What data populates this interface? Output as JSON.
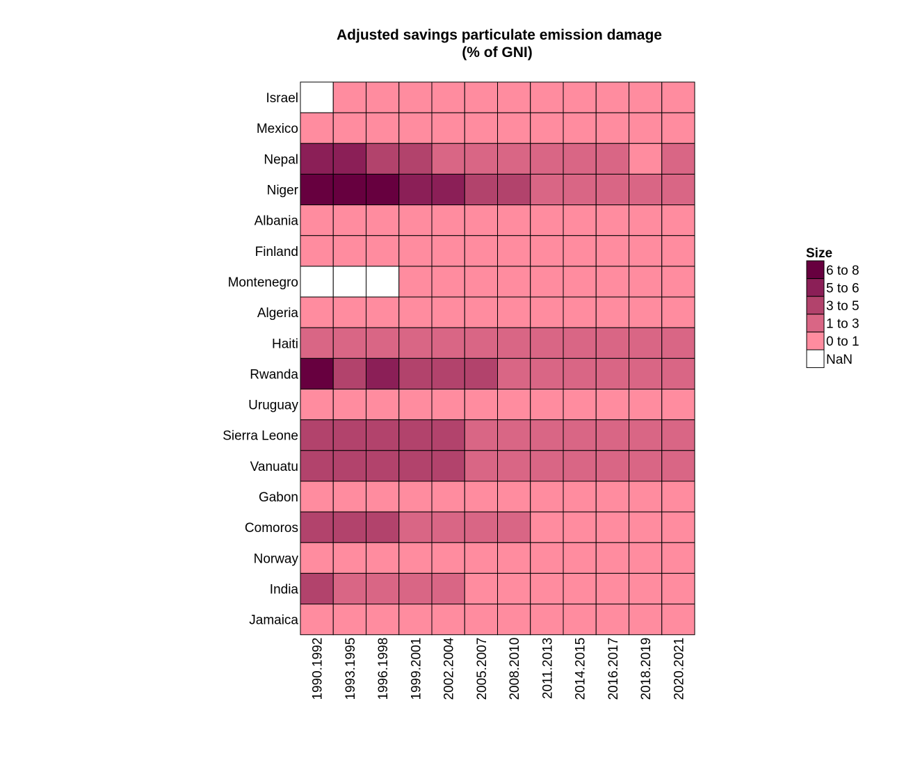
{
  "chart_data": {
    "type": "heatmap",
    "title": "Adjusted savings particulate emission damage",
    "subtitle": "(% of GNI)",
    "x": [
      "1990.1992",
      "1993.1995",
      "1996.1998",
      "1999.2001",
      "2002.2004",
      "2005.2007",
      "2008.2010",
      "2011.2013",
      "2014.2015",
      "2016.2017",
      "2018.2019",
      "2020.2021"
    ],
    "y": [
      "Israel",
      "Mexico",
      "Nepal",
      "Niger",
      "Albania",
      "Finland",
      "Montenegro",
      "Algeria",
      "Haiti",
      "Rwanda",
      "Uruguay",
      "Sierra Leone",
      "Vanuatu",
      "Gabon",
      "Comoros",
      "Norway",
      "India",
      "Jamaica"
    ],
    "values": [
      [
        "NaN",
        "0 to 1",
        "0 to 1",
        "0 to 1",
        "0 to 1",
        "0 to 1",
        "0 to 1",
        "0 to 1",
        "0 to 1",
        "0 to 1",
        "0 to 1",
        "0 to 1"
      ],
      [
        "0 to 1",
        "0 to 1",
        "0 to 1",
        "0 to 1",
        "0 to 1",
        "0 to 1",
        "0 to 1",
        "0 to 1",
        "0 to 1",
        "0 to 1",
        "0 to 1",
        "0 to 1"
      ],
      [
        "5 to 6",
        "5 to 6",
        "3 to 5",
        "3 to 5",
        "1 to 3",
        "1 to 3",
        "1 to 3",
        "1 to 3",
        "1 to 3",
        "1 to 3",
        "0 to 1",
        "1 to 3"
      ],
      [
        "6 to 8",
        "6 to 8",
        "6 to 8",
        "5 to 6",
        "5 to 6",
        "3 to 5",
        "3 to 5",
        "1 to 3",
        "1 to 3",
        "1 to 3",
        "1 to 3",
        "1 to 3"
      ],
      [
        "0 to 1",
        "0 to 1",
        "0 to 1",
        "0 to 1",
        "0 to 1",
        "0 to 1",
        "0 to 1",
        "0 to 1",
        "0 to 1",
        "0 to 1",
        "0 to 1",
        "0 to 1"
      ],
      [
        "0 to 1",
        "0 to 1",
        "0 to 1",
        "0 to 1",
        "0 to 1",
        "0 to 1",
        "0 to 1",
        "0 to 1",
        "0 to 1",
        "0 to 1",
        "0 to 1",
        "0 to 1"
      ],
      [
        "NaN",
        "NaN",
        "NaN",
        "0 to 1",
        "0 to 1",
        "0 to 1",
        "0 to 1",
        "0 to 1",
        "0 to 1",
        "0 to 1",
        "0 to 1",
        "0 to 1"
      ],
      [
        "0 to 1",
        "0 to 1",
        "0 to 1",
        "0 to 1",
        "0 to 1",
        "0 to 1",
        "0 to 1",
        "0 to 1",
        "0 to 1",
        "0 to 1",
        "0 to 1",
        "0 to 1"
      ],
      [
        "1 to 3",
        "1 to 3",
        "1 to 3",
        "1 to 3",
        "1 to 3",
        "1 to 3",
        "1 to 3",
        "1 to 3",
        "1 to 3",
        "1 to 3",
        "1 to 3",
        "1 to 3"
      ],
      [
        "6 to 8",
        "3 to 5",
        "5 to 6",
        "3 to 5",
        "3 to 5",
        "3 to 5",
        "1 to 3",
        "1 to 3",
        "1 to 3",
        "1 to 3",
        "1 to 3",
        "1 to 3"
      ],
      [
        "0 to 1",
        "0 to 1",
        "0 to 1",
        "0 to 1",
        "0 to 1",
        "0 to 1",
        "0 to 1",
        "0 to 1",
        "0 to 1",
        "0 to 1",
        "0 to 1",
        "0 to 1"
      ],
      [
        "3 to 5",
        "3 to 5",
        "3 to 5",
        "3 to 5",
        "3 to 5",
        "1 to 3",
        "1 to 3",
        "1 to 3",
        "1 to 3",
        "1 to 3",
        "1 to 3",
        "1 to 3"
      ],
      [
        "3 to 5",
        "3 to 5",
        "3 to 5",
        "3 to 5",
        "3 to 5",
        "1 to 3",
        "1 to 3",
        "1 to 3",
        "1 to 3",
        "1 to 3",
        "1 to 3",
        "1 to 3"
      ],
      [
        "0 to 1",
        "0 to 1",
        "0 to 1",
        "0 to 1",
        "0 to 1",
        "0 to 1",
        "0 to 1",
        "0 to 1",
        "0 to 1",
        "0 to 1",
        "0 to 1",
        "0 to 1"
      ],
      [
        "3 to 5",
        "3 to 5",
        "3 to 5",
        "1 to 3",
        "1 to 3",
        "1 to 3",
        "1 to 3",
        "0 to 1",
        "0 to 1",
        "0 to 1",
        "0 to 1",
        "0 to 1"
      ],
      [
        "0 to 1",
        "0 to 1",
        "0 to 1",
        "0 to 1",
        "0 to 1",
        "0 to 1",
        "0 to 1",
        "0 to 1",
        "0 to 1",
        "0 to 1",
        "0 to 1",
        "0 to 1"
      ],
      [
        "3 to 5",
        "1 to 3",
        "1 to 3",
        "1 to 3",
        "1 to 3",
        "0 to 1",
        "0 to 1",
        "0 to 1",
        "0 to 1",
        "0 to 1",
        "0 to 1",
        "0 to 1"
      ],
      [
        "0 to 1",
        "0 to 1",
        "0 to 1",
        "0 to 1",
        "0 to 1",
        "0 to 1",
        "0 to 1",
        "0 to 1",
        "0 to 1",
        "0 to 1",
        "0 to 1",
        "0 to 1"
      ]
    ],
    "legend": {
      "title": "Size",
      "placement": "right",
      "items": [
        {
          "label": "6 to 8",
          "color": "#67003f"
        },
        {
          "label": "5 to 6",
          "color": "#8b1f57"
        },
        {
          "label": "3 to 5",
          "color": "#b2436c"
        },
        {
          "label": "1 to 3",
          "color": "#d96685"
        },
        {
          "label": "0 to 1",
          "color": "#ff8c9f"
        },
        {
          "label": "NaN",
          "color": "#ffffff"
        }
      ]
    },
    "grid": false
  }
}
